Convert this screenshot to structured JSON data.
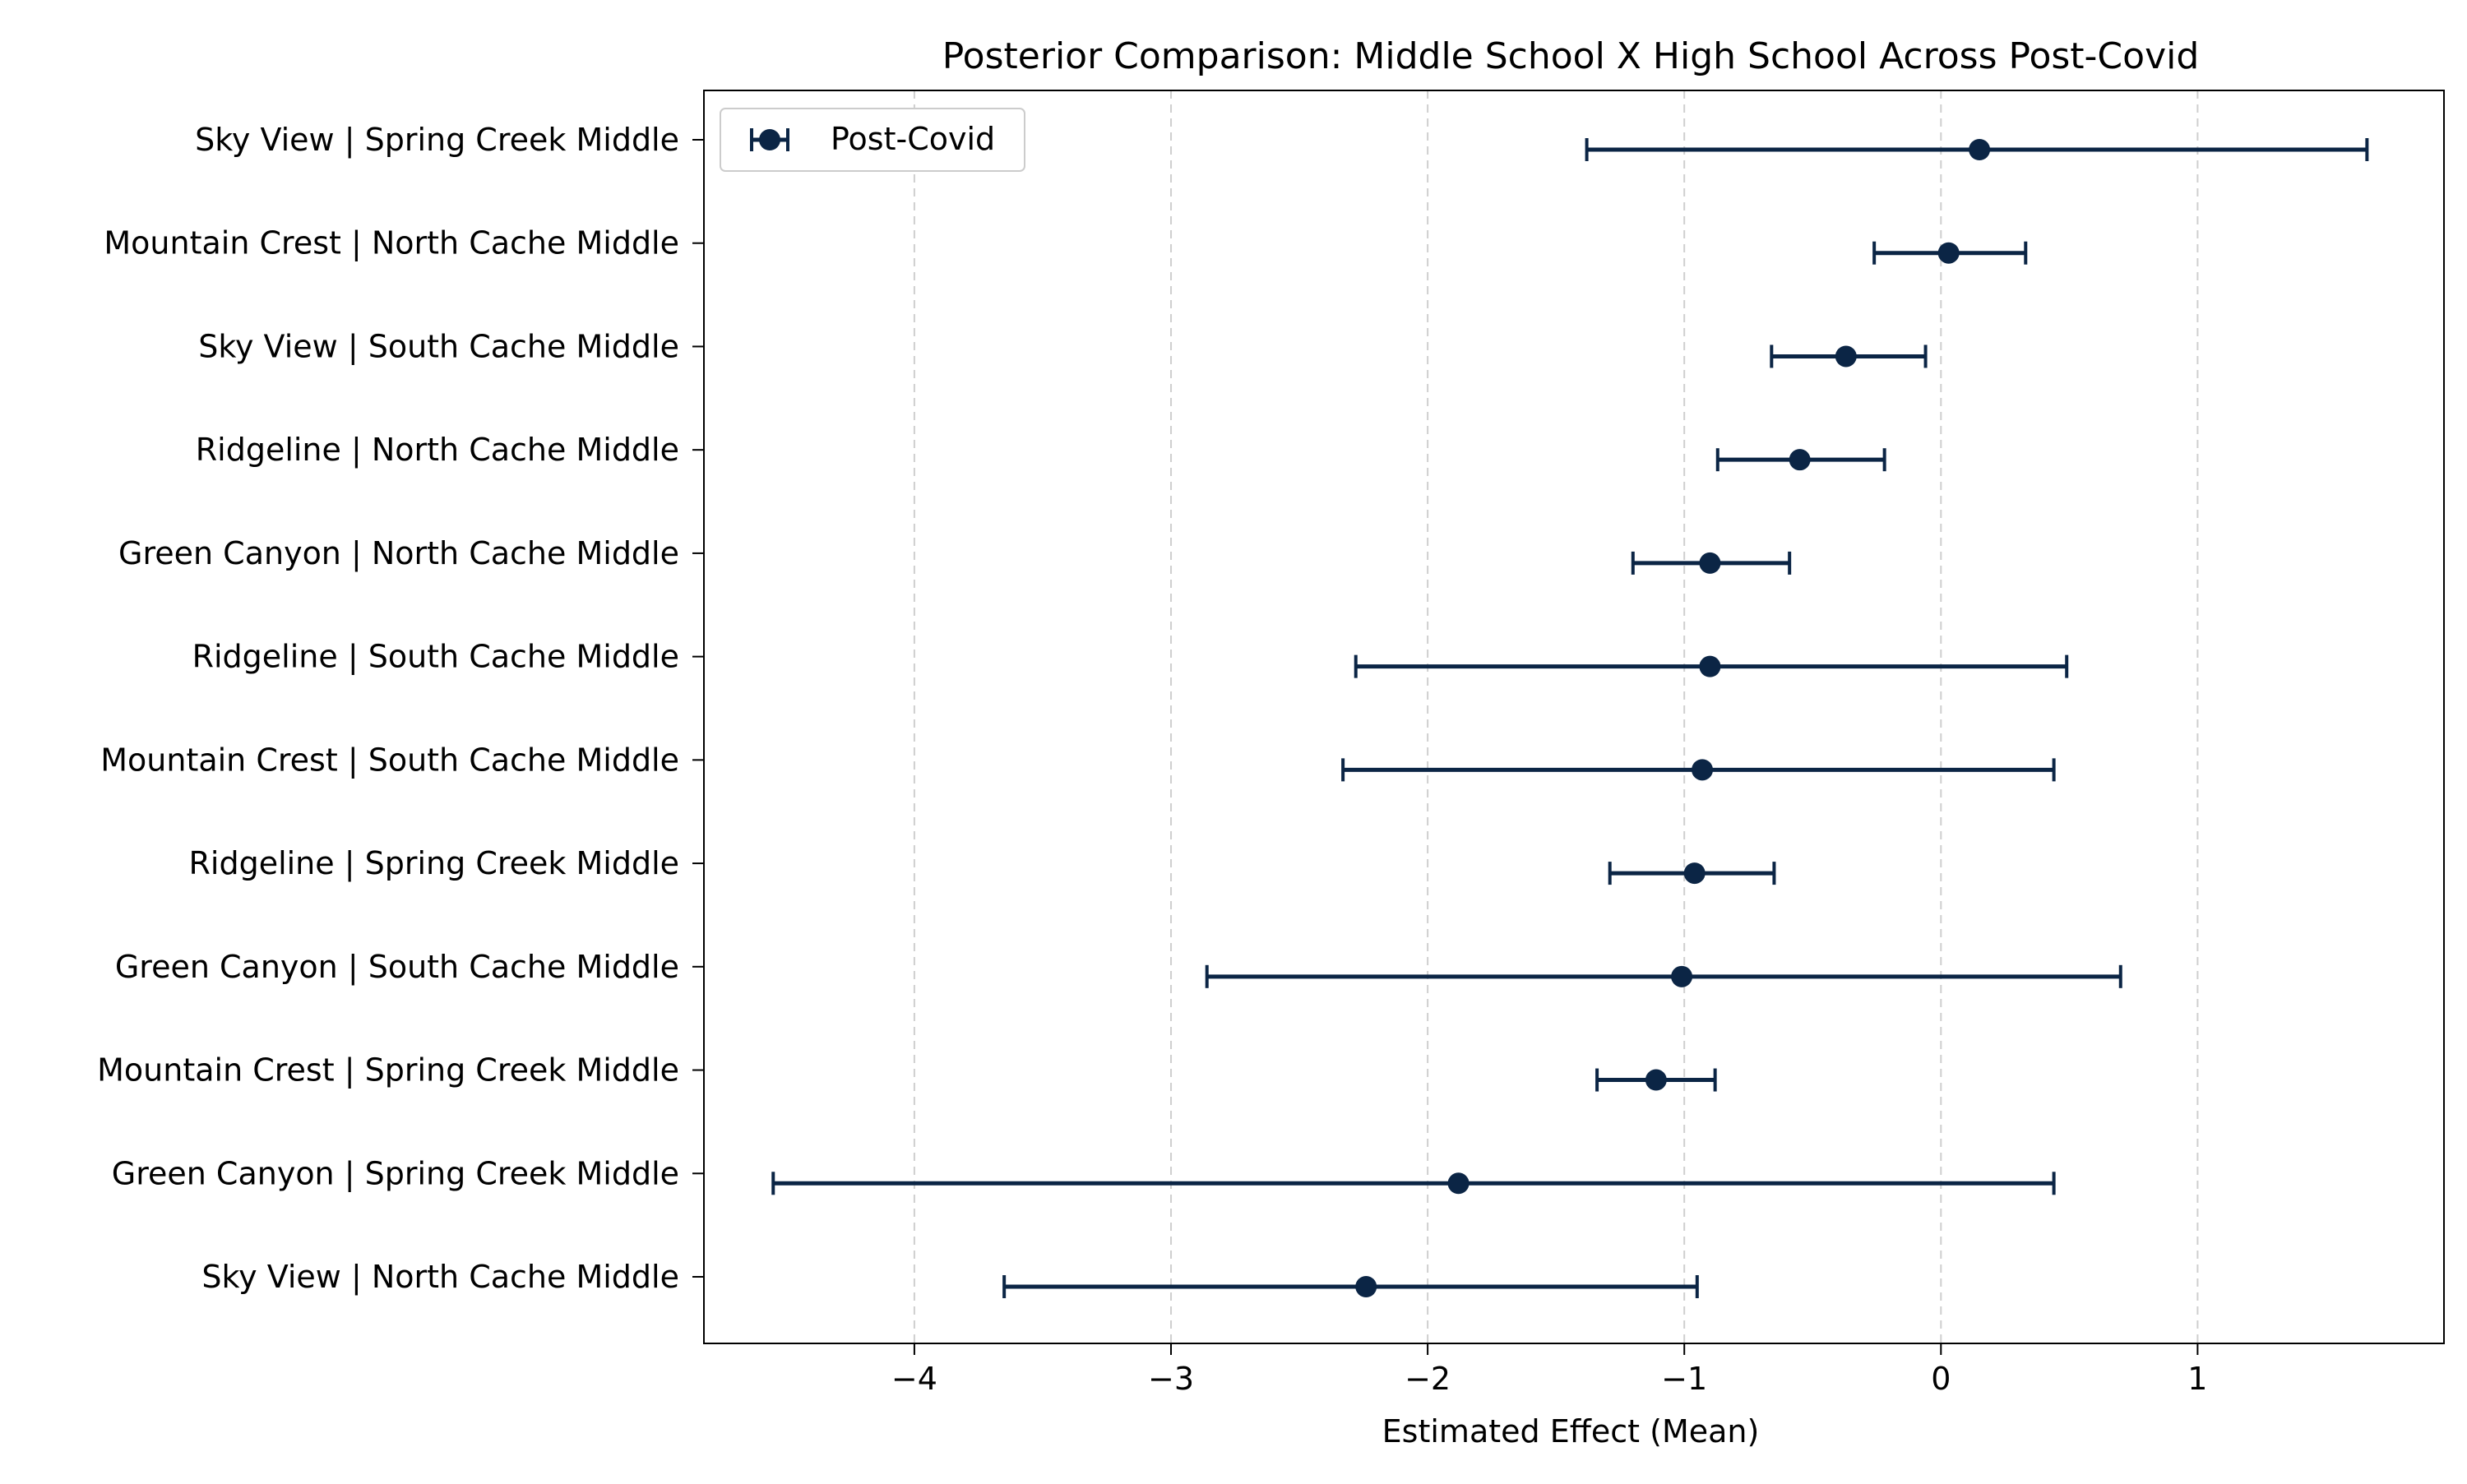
{
  "chart_data": {
    "type": "errorbar",
    "orientation": "horizontal",
    "title": "Posterior Comparison: Middle School X High School Across Post-Covid",
    "xlabel": "Estimated Effect (Mean)",
    "ylabel": "",
    "xlim": [
      -4.82,
      1.96
    ],
    "xticks": [
      -4,
      -3,
      -2,
      -1,
      0,
      1
    ],
    "xtick_labels": [
      "−4",
      "−3",
      "−2",
      "−1",
      "0",
      "1"
    ],
    "grid": "x-dashed",
    "legend_position": "upper-left",
    "categories": [
      "Sky View | Spring Creek Middle",
      "Mountain Crest | North Cache Middle",
      "Sky View | South Cache Middle",
      "Ridgeline | North Cache Middle",
      "Green Canyon | North Cache Middle",
      "Ridgeline | South Cache Middle",
      "Mountain Crest | South Cache Middle",
      "Ridgeline | Spring Creek Middle",
      "Green Canyon | South Cache Middle",
      "Mountain Crest | Spring Creek Middle",
      "Green Canyon | Spring Creek Middle",
      "Sky View | North Cache Middle"
    ],
    "series": [
      {
        "name": "Post-Covid",
        "color": "#0b2545",
        "mean": [
          0.15,
          0.03,
          -0.37,
          -0.55,
          -0.9,
          -0.9,
          -0.93,
          -0.96,
          -1.01,
          -1.11,
          -1.88,
          -2.24
        ],
        "lower": [
          -1.38,
          -0.26,
          -0.66,
          -0.87,
          -1.2,
          -2.28,
          -2.33,
          -1.29,
          -2.86,
          -1.34,
          -4.55,
          -3.65
        ],
        "upper": [
          1.66,
          0.33,
          -0.06,
          -0.22,
          -0.59,
          0.49,
          0.44,
          -0.65,
          0.7,
          -0.88,
          0.44,
          -0.95
        ]
      }
    ]
  }
}
